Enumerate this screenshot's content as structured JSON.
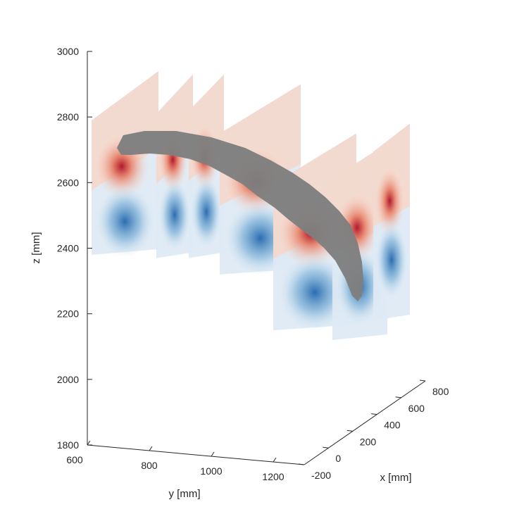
{
  "chart_data": {
    "type": "3d-slice-field",
    "title": "",
    "grid": false,
    "axes": {
      "x": {
        "label": "x [mm]",
        "range": [
          -200,
          800
        ],
        "ticks": [
          -200,
          0,
          200,
          400,
          600,
          800
        ],
        "tick_labels": [
          "-200",
          "0",
          "200",
          "400",
          "600",
          "800"
        ]
      },
      "y": {
        "label": "y [mm]",
        "range": [
          600,
          1300
        ],
        "ticks": [
          600,
          800,
          1000,
          1200
        ],
        "tick_labels": [
          "600",
          "800",
          "1000",
          "1200"
        ]
      },
      "z": {
        "label": "z [mm]",
        "range": [
          1800,
          3000
        ],
        "ticks": [
          1800,
          2000,
          2200,
          2400,
          2600,
          2800,
          3000
        ],
        "tick_labels": [
          "1800",
          "2000",
          "2200",
          "2400",
          "2600",
          "2800",
          "3000"
        ]
      }
    },
    "series": [
      {
        "values": [
          2380,
          2940
        ]
      },
      {
        "values": [
          2370,
          2930
        ]
      },
      {
        "values": [
          2370,
          2930
        ]
      },
      {
        "values": [
          2320,
          2900
        ]
      },
      {
        "values": [
          2150,
          2750
        ]
      },
      {
        "values": [
          2120,
          2720
        ]
      },
      {
        "values": [
          2180,
          2780
        ]
      }
    ],
    "colormap": {
      "positive": "#b2182b",
      "neutral": "#f7f7f7",
      "negative": "#2166ac"
    },
    "body_color": "#7f7f7f"
  }
}
